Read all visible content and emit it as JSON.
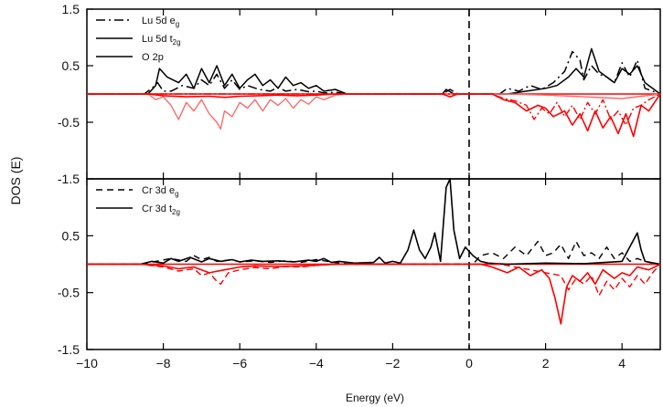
{
  "chart_data": [
    {
      "type": "line",
      "panel": "top",
      "xlim": [
        -10,
        5
      ],
      "ylim": [
        -1.5,
        1.5
      ],
      "y_ticks": [
        1.5,
        0.5,
        -0.5,
        -1.5
      ],
      "y_tick_labels": [
        "1.5",
        "0.5",
        "-0.5",
        "-1.5"
      ],
      "fermi_level": 0,
      "legend_placement": "top-left",
      "legend": [
        {
          "label": "Lu 5d e",
          "sub": "g",
          "style": "dash-dot"
        },
        {
          "label": "Lu 5d t",
          "sub": "2g",
          "style": "solid"
        },
        {
          "label": "O 2p",
          "sub": "",
          "style": "solid"
        }
      ],
      "series": [
        {
          "label_index": 0,
          "color": "#000000",
          "dash": "10 4 2 4",
          "width": 1.5,
          "x": [
            -10,
            -8.5,
            -8.3,
            -8.15,
            -8.0,
            -7.8,
            -7.5,
            -7.2,
            -7.0,
            -6.8,
            -6.6,
            -6.4,
            -6.2,
            -6.0,
            -5.8,
            -5.5,
            -5.2,
            -5.0,
            -4.8,
            -4.5,
            -4.2,
            -4.0,
            -3.8,
            -3.5,
            -3.2,
            -0.7,
            -0.5,
            -0.3,
            0.8,
            1.0,
            1.3,
            1.6,
            1.9,
            2.2,
            2.5,
            2.7,
            2.9,
            3.0,
            3.2,
            3.4,
            3.6,
            3.8,
            4.0,
            4.2,
            4.4,
            4.6,
            5
          ],
          "y": [
            0,
            0,
            0.1,
            0.2,
            0.05,
            0.05,
            0.15,
            0.1,
            0.25,
            0.15,
            0.35,
            0.1,
            0.25,
            0.08,
            0.15,
            0.08,
            0.05,
            0.12,
            0.05,
            0.08,
            0.04,
            0.05,
            0.02,
            0.03,
            0,
            0,
            0.08,
            0,
            0,
            0.1,
            0.05,
            0.15,
            0.08,
            0.2,
            0.4,
            0.75,
            0.6,
            0.25,
            0.5,
            0.35,
            0.3,
            0.2,
            0.55,
            0.3,
            0.6,
            0.1,
            0
          ]
        },
        {
          "label_index": 1,
          "color": "#000000",
          "dash": "",
          "width": 1.5,
          "x": [
            -10,
            -8.4,
            -8.2,
            -8.1,
            -7.9,
            -7.6,
            -7.4,
            -7.2,
            -7.0,
            -6.8,
            -6.6,
            -6.4,
            -6.2,
            -6.0,
            -5.8,
            -5.6,
            -5.4,
            -5.2,
            -5.0,
            -4.8,
            -4.6,
            -4.4,
            -4.2,
            -4.0,
            -3.8,
            -3.5,
            -3.2,
            -0.7,
            -0.6,
            -0.4,
            1.0,
            1.5,
            2.0,
            2.3,
            2.6,
            2.8,
            3.0,
            3.2,
            3.4,
            3.6,
            3.8,
            4.0,
            4.2,
            4.4,
            4.6,
            5
          ],
          "y": [
            0,
            0,
            0.15,
            0.45,
            0.3,
            0.2,
            0.35,
            0.1,
            0.45,
            0.2,
            0.5,
            0.15,
            0.35,
            0.1,
            0.25,
            0.35,
            0.15,
            0.25,
            0.1,
            0.3,
            0.15,
            0.2,
            0.1,
            0.15,
            0.05,
            0.08,
            0,
            0,
            0.08,
            0,
            0,
            0.05,
            0.1,
            0.15,
            0.3,
            0.45,
            0.3,
            0.8,
            0.4,
            0.3,
            0.2,
            0.45,
            0.35,
            0.5,
            0.2,
            0
          ]
        },
        {
          "label_index": 2,
          "color": "#ff6a6a",
          "dash": "",
          "width": 1.4,
          "x": [
            -10,
            -8.4,
            -8.2,
            -8.0,
            -7.8,
            -7.6,
            -7.4,
            -7.2,
            -7.0,
            -6.8,
            -6.6,
            -6.5,
            -6.4,
            -6.2,
            -6.0,
            -5.8,
            -5.6,
            -5.4,
            -5.2,
            -5.0,
            -4.8,
            -4.6,
            -4.4,
            -4.2,
            -4.0,
            -3.8,
            -3.5,
            -3.2,
            1.0,
            2.0,
            3.0,
            4.0,
            5
          ],
          "y": [
            0,
            0,
            -0.1,
            -0.05,
            -0.2,
            -0.45,
            -0.15,
            -0.3,
            -0.1,
            -0.35,
            -0.5,
            -0.62,
            -0.3,
            -0.4,
            -0.15,
            -0.25,
            -0.1,
            -0.3,
            -0.1,
            -0.2,
            -0.08,
            -0.25,
            -0.1,
            -0.18,
            -0.05,
            -0.1,
            -0.02,
            0,
            0,
            -0.02,
            -0.05,
            -0.08,
            0
          ]
        },
        {
          "label_index": 1,
          "color": "#ff0000",
          "dash": "",
          "width": 1.6,
          "x": [
            -10,
            -8.4,
            -8.0,
            -7.4,
            -6.8,
            -6.4,
            -6.0,
            -5.5,
            -5.0,
            -4.5,
            -4.0,
            -3.5,
            -0.7,
            -0.5,
            -0.3,
            0.6,
            0.9,
            1.2,
            1.5,
            1.8,
            2.0,
            2.2,
            2.5,
            2.7,
            2.9,
            3.1,
            3.3,
            3.5,
            3.7,
            3.9,
            4.1,
            4.3,
            4.5,
            4.7,
            5
          ],
          "y": [
            0,
            0,
            -0.03,
            -0.05,
            -0.04,
            -0.06,
            -0.04,
            -0.03,
            -0.02,
            -0.03,
            -0.02,
            0,
            0,
            -0.05,
            0,
            0,
            -0.1,
            -0.15,
            -0.3,
            -0.2,
            -0.25,
            -0.4,
            -0.3,
            -0.55,
            -0.35,
            -0.65,
            -0.3,
            -0.6,
            -0.4,
            -0.7,
            -0.35,
            -0.75,
            -0.2,
            -0.3,
            0
          ]
        },
        {
          "label_index": 0,
          "color": "#ff0000",
          "dash": "8 3 2 3",
          "width": 1.4,
          "x": [
            -10,
            0.6,
            0.9,
            1.2,
            1.5,
            1.7,
            1.9,
            2.1,
            2.3,
            2.5,
            2.7,
            2.9,
            3.1,
            3.3,
            3.5,
            3.7,
            3.9,
            4.1,
            4.3,
            4.5,
            4.7,
            5
          ],
          "y": [
            0,
            0,
            -0.08,
            -0.12,
            -0.2,
            -0.45,
            -0.25,
            -0.35,
            -0.15,
            -0.4,
            -0.2,
            -0.45,
            -0.15,
            -0.35,
            -0.1,
            -0.45,
            -0.3,
            -0.55,
            -0.25,
            -0.2,
            -0.1,
            0
          ]
        }
      ]
    },
    {
      "type": "line",
      "panel": "bottom",
      "xlim": [
        -10,
        5
      ],
      "ylim": [
        -1.5,
        1.5
      ],
      "y_ticks": [
        0.5,
        -0.5,
        -1.5
      ],
      "y_tick_labels": [
        "0.5",
        "-0.5",
        "-1.5"
      ],
      "x_ticks": [
        -10,
        -8,
        -6,
        -4,
        -2,
        0,
        2,
        4
      ],
      "x_tick_labels": [
        "−10",
        "−8",
        "−6",
        "−4",
        "−2",
        "0",
        "2",
        "4"
      ],
      "fermi_level": 0,
      "legend_placement": "top-left",
      "legend": [
        {
          "label": "Cr 3d e",
          "sub": "g",
          "style": "dashed"
        },
        {
          "label": "Cr 3d t",
          "sub": "2g",
          "style": "solid"
        }
      ],
      "series": [
        {
          "label_index": 1,
          "color": "#000000",
          "dash": "",
          "width": 1.6,
          "x": [
            -10,
            -8.6,
            -8.3,
            -8.0,
            -7.8,
            -7.6,
            -7.3,
            -7.0,
            -6.8,
            -6.5,
            -6.2,
            -6.0,
            -5.7,
            -5.4,
            -5.0,
            -4.6,
            -4.2,
            -4.0,
            -3.8,
            -3.6,
            -3.4,
            -3.0,
            -2.5,
            -2.35,
            -2.2,
            -2.0,
            -1.8,
            -1.6,
            -1.45,
            -1.3,
            -1.15,
            -1.0,
            -0.9,
            -0.75,
            -0.6,
            -0.5,
            -0.4,
            -0.25,
            -0.1,
            0.1,
            0.3,
            0.5,
            1.0,
            2.0,
            3.0,
            4.0,
            4.4,
            4.5,
            4.6,
            5
          ],
          "y": [
            0,
            0,
            0.05,
            0.02,
            0.1,
            0.05,
            0.12,
            0.04,
            0.1,
            0.05,
            0.08,
            0.04,
            0.07,
            0.05,
            0.06,
            0.04,
            0.07,
            0.05,
            0.1,
            0.03,
            0.05,
            0.02,
            0.03,
            0.12,
            0.02,
            0.05,
            0.02,
            0.25,
            0.6,
            0.25,
            0.1,
            0.3,
            0.55,
            0.05,
            1.35,
            1.5,
            0.6,
            0.1,
            0.3,
            0.15,
            0.05,
            0.02,
            0,
            0.02,
            0.01,
            0.05,
            0.55,
            0.25,
            0.05,
            0
          ]
        },
        {
          "label_index": 0,
          "color": "#000000",
          "dash": "7 5",
          "width": 1.4,
          "x": [
            -10,
            -8.6,
            -8.2,
            -7.8,
            -7.4,
            -7.2,
            -7.0,
            -6.8,
            -6.6,
            -6.2,
            -6.0,
            -5.6,
            -5.2,
            -4.8,
            -4.4,
            -4.0,
            -3.6,
            -3.4,
            -3.0,
            0.1,
            0.3,
            0.6,
            0.9,
            1.2,
            1.5,
            1.8,
            2.0,
            2.2,
            2.4,
            2.6,
            2.8,
            3.0,
            3.2,
            3.4,
            3.6,
            3.8,
            4.0,
            4.2,
            4.4,
            4.6,
            4.8,
            5
          ],
          "y": [
            0,
            0,
            0.05,
            0.1,
            0.05,
            0.15,
            0.08,
            0.12,
            0.05,
            0.08,
            0.04,
            0.06,
            0.03,
            0.06,
            0.03,
            0.08,
            0.04,
            0.02,
            0,
            0,
            0.15,
            0.2,
            0.1,
            0.3,
            0.15,
            0.4,
            0.15,
            0.2,
            0.35,
            0.1,
            0.4,
            0.15,
            0.2,
            0.1,
            0.3,
            0.1,
            0.2,
            0.05,
            0.1,
            0.05,
            0.02,
            0
          ]
        },
        {
          "label_index": 1,
          "color": "#ff0000",
          "dash": "",
          "width": 1.6,
          "x": [
            -10,
            -8.6,
            -8.0,
            -7.6,
            -7.2,
            -6.8,
            -6.4,
            -6.0,
            -5.6,
            -5.0,
            -4.4,
            -4.0,
            -3.5,
            0.3,
            0.6,
            1.0,
            1.3,
            1.6,
            1.9,
            2.1,
            2.25,
            2.4,
            2.55,
            2.7,
            2.9,
            3.1,
            3.3,
            3.5,
            3.8,
            4.0,
            4.2,
            4.4,
            4.7,
            5
          ],
          "y": [
            0,
            0,
            -0.03,
            -0.08,
            -0.05,
            -0.15,
            -0.1,
            -0.05,
            -0.03,
            -0.04,
            -0.03,
            -0.02,
            0,
            0,
            -0.05,
            -0.15,
            -0.05,
            -0.2,
            -0.1,
            -0.25,
            -0.6,
            -1.05,
            -0.4,
            -0.2,
            -0.3,
            -0.15,
            -0.35,
            -0.1,
            -0.25,
            -0.15,
            -0.2,
            -0.05,
            -0.1,
            0
          ]
        },
        {
          "label_index": 0,
          "color": "#ff0000",
          "dash": "7 4",
          "width": 1.4,
          "x": [
            -10,
            -8.6,
            -8.0,
            -7.6,
            -7.2,
            -7.0,
            -6.8,
            -6.6,
            -6.5,
            -6.3,
            -6.0,
            -5.6,
            -5.2,
            -4.8,
            -4.4,
            -4.0,
            -3.5,
            0.8,
            1.2,
            1.6,
            2.0,
            2.4,
            2.6,
            2.8,
            3.0,
            3.2,
            3.4,
            3.6,
            3.8,
            4.0,
            4.2,
            4.4,
            4.6,
            4.8,
            5
          ],
          "y": [
            0,
            0,
            -0.05,
            -0.12,
            -0.08,
            -0.2,
            -0.15,
            -0.3,
            -0.35,
            -0.15,
            -0.1,
            -0.06,
            -0.08,
            -0.04,
            -0.05,
            -0.02,
            0,
            0,
            -0.05,
            -0.1,
            -0.15,
            -0.2,
            -0.45,
            -0.25,
            -0.35,
            -0.2,
            -0.55,
            -0.3,
            -0.45,
            -0.25,
            -0.4,
            -0.2,
            -0.35,
            -0.15,
            0
          ]
        }
      ]
    }
  ],
  "axes": {
    "ylabel": "DOS (E)",
    "xlabel": "Energy (eV)"
  }
}
